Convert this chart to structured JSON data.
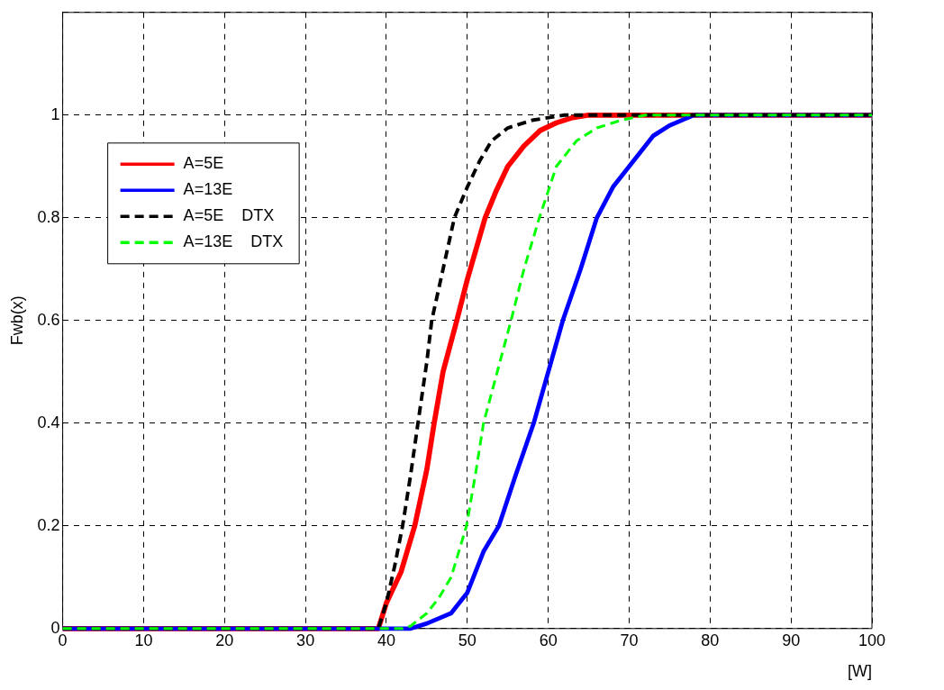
{
  "chart_data": {
    "type": "line",
    "xlabel": "[W]",
    "ylabel": "Fwb(x)",
    "xlim": [
      0,
      100
    ],
    "xticks": [
      0,
      10,
      20,
      30,
      40,
      50,
      60,
      70,
      80,
      90,
      100
    ],
    "ylim": [
      0,
      1.2
    ],
    "yticks": [
      0,
      0.2,
      0.4,
      0.6,
      0.8,
      1,
      {
        "value": 1.2,
        "label": null
      }
    ],
    "grid": true,
    "legend": "top left",
    "marker": "none",
    "series": [
      {
        "name": "A=5E",
        "color": "#ff0000",
        "line_style": "solid",
        "x": [
          0,
          39,
          40,
          41.8,
          43.5,
          45,
          45.9,
          47,
          48.7,
          50,
          52.2,
          53.5,
          55,
          57,
          59,
          61,
          63,
          65,
          100
        ],
        "values": [
          0,
          0,
          0.05,
          0.11,
          0.2,
          0.31,
          0.4,
          0.5,
          0.6,
          0.68,
          0.8,
          0.85,
          0.9,
          0.94,
          0.97,
          0.985,
          0.995,
          1,
          1
        ]
      },
      {
        "name": "A=13E",
        "color": "#0000ff",
        "line_style": "solid",
        "x": [
          0,
          43,
          45,
          48,
          50,
          52,
          53.9,
          56,
          58.2,
          60,
          61.8,
          64,
          66,
          68,
          70,
          73,
          75,
          78,
          100
        ],
        "values": [
          0,
          0,
          0.01,
          0.03,
          0.07,
          0.15,
          0.2,
          0.3,
          0.4,
          0.5,
          0.6,
          0.7,
          0.8,
          0.86,
          0.9,
          0.96,
          0.98,
          1,
          1
        ]
      },
      {
        "name": "A=5E    DTX",
        "color": "#000000",
        "line_style": "dashed",
        "x": [
          0,
          39,
          40,
          41,
          42,
          43,
          43.9,
          45,
          45.6,
          47,
          48.4,
          50,
          51.5,
          53,
          55,
          58,
          62,
          100
        ],
        "values": [
          0,
          0,
          0.05,
          0.12,
          0.2,
          0.3,
          0.4,
          0.52,
          0.6,
          0.7,
          0.8,
          0.86,
          0.91,
          0.95,
          0.975,
          0.99,
          1,
          1
        ]
      },
      {
        "name": "A=13E    DTX",
        "color": "#00ff00",
        "line_style": "dashed",
        "x": [
          0,
          42,
          43,
          45,
          46.5,
          48,
          49.9,
          51,
          52,
          53.7,
          55.4,
          57,
          58.9,
          61,
          63.5,
          66,
          69,
          72,
          100
        ],
        "values": [
          0,
          0,
          0.005,
          0.03,
          0.06,
          0.1,
          0.2,
          0.3,
          0.4,
          0.5,
          0.6,
          0.7,
          0.8,
          0.9,
          0.95,
          0.975,
          0.99,
          1,
          1
        ]
      }
    ]
  }
}
